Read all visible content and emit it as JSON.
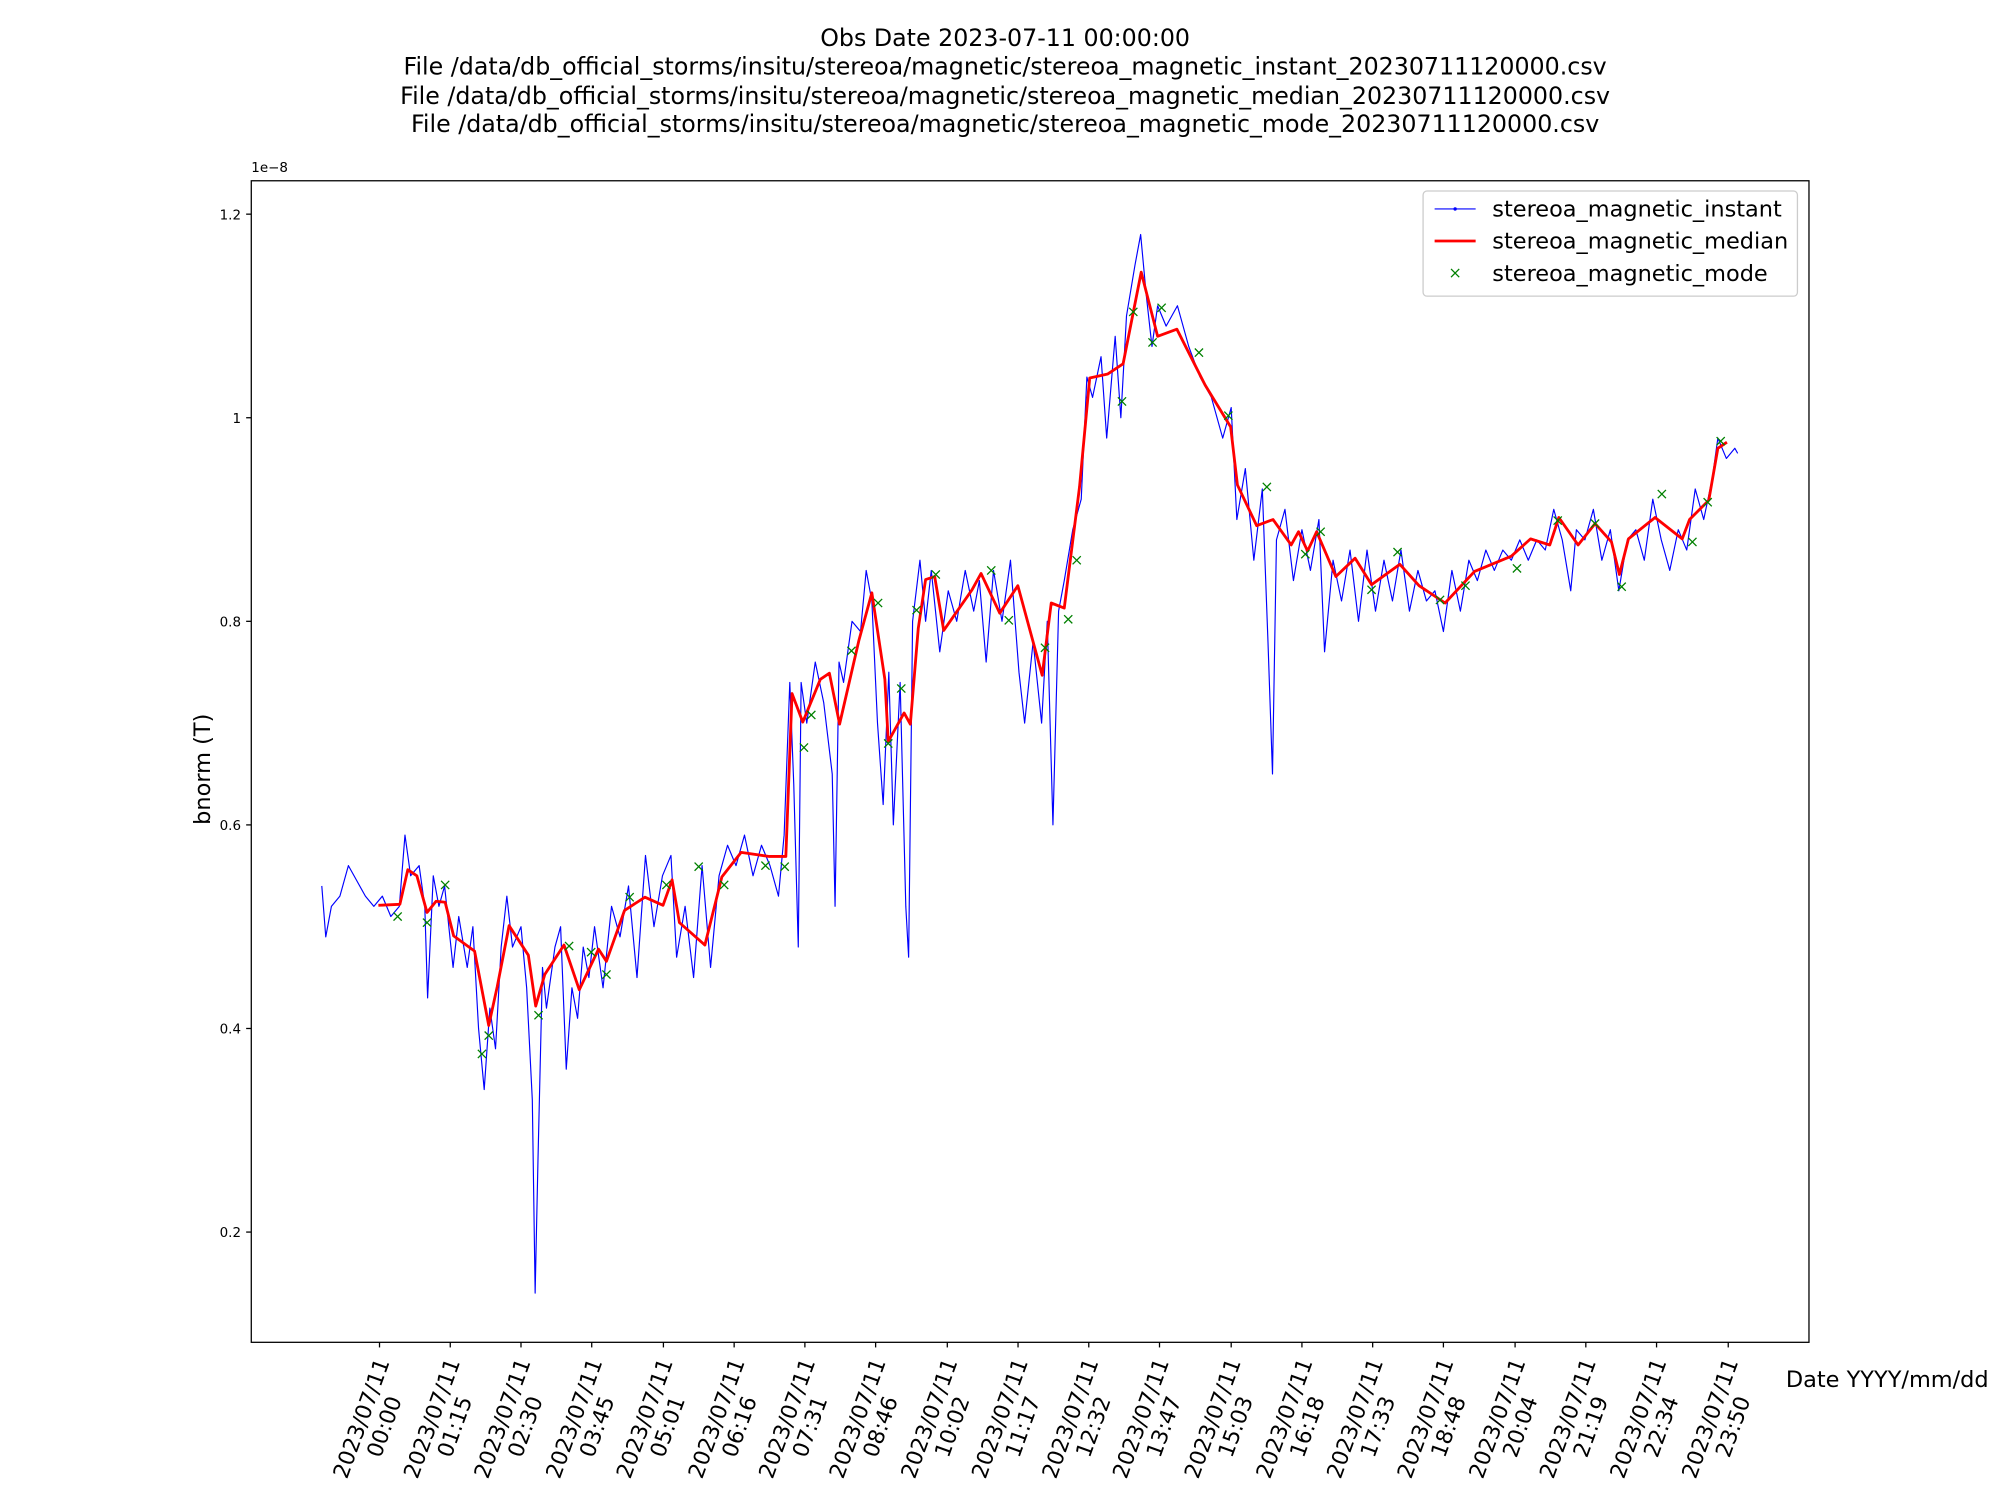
{
  "chart_data": {
    "type": "line",
    "title": "Obs Date 2023-07-11 00:00:00\nFile /data/db_official_storms/insitu/stereoa/magnetic/stereoa_magnetic_instant_20230711120000.csv\nFile /data/db_official_storms/insitu/stereoa/magnetic/stereoa_magnetic_median_20230711120000.csv\nFile /data/db_official_storms/insitu/stereoa/magnetic/stereoa_magnetic_mode_20230711120000.csv",
    "x_label": "Date YYYY/mm/dd",
    "y_label": "bnorm (T)",
    "y_offset_label": "1e−8",
    "xlim": [
      -2.266,
      25.26
    ],
    "ylim": [
      0.0917,
      1.2328
    ],
    "xticks": [
      {
        "value": 0,
        "label": "2023/07/11\n00:00"
      },
      {
        "value": 1.25,
        "label": "2023/07/11\n01:15"
      },
      {
        "value": 2.5,
        "label": "2023/07/11\n02:30"
      },
      {
        "value": 3.75,
        "label": "2023/07/11\n03:45"
      },
      {
        "value": 5.0167,
        "label": "2023/07/11\n05:01"
      },
      {
        "value": 6.2667,
        "label": "2023/07/11\n06:16"
      },
      {
        "value": 7.5167,
        "label": "2023/07/11\n07:31"
      },
      {
        "value": 8.7667,
        "label": "2023/07/11\n08:46"
      },
      {
        "value": 10.0333,
        "label": "2023/07/11\n10:02"
      },
      {
        "value": 11.2833,
        "label": "2023/07/11\n11:17"
      },
      {
        "value": 12.5333,
        "label": "2023/07/11\n12:32"
      },
      {
        "value": 13.7833,
        "label": "2023/07/11\n13:47"
      },
      {
        "value": 15.05,
        "label": "2023/07/11\n15:03"
      },
      {
        "value": 16.3,
        "label": "2023/07/11\n16:18"
      },
      {
        "value": 17.55,
        "label": "2023/07/11\n17:33"
      },
      {
        "value": 18.8,
        "label": "2023/07/11\n18:48"
      },
      {
        "value": 20.0667,
        "label": "2023/07/11\n20:04"
      },
      {
        "value": 21.3167,
        "label": "2023/07/11\n21:19"
      },
      {
        "value": 22.5667,
        "label": "2023/07/11\n22:34"
      },
      {
        "value": 23.8333,
        "label": "2023/07/11\n23:50"
      }
    ],
    "yticks": [
      0.2,
      0.4,
      0.6,
      0.8,
      1.0,
      1.2
    ],
    "grid": false,
    "legend": "upper right",
    "series": [
      {
        "name": "stereoa_magnetic_instant",
        "color": "#0000ff",
        "style": "thin-line",
        "x": [
          -1.02,
          -0.95,
          -0.85,
          -0.7,
          -0.55,
          -0.4,
          -0.25,
          -0.1,
          0.05,
          0.2,
          0.35,
          0.45,
          0.55,
          0.7,
          0.8,
          0.85,
          0.95,
          1.05,
          1.15,
          1.3,
          1.4,
          1.55,
          1.65,
          1.75,
          1.85,
          1.95,
          2.05,
          2.15,
          2.25,
          2.35,
          2.5,
          2.6,
          2.7,
          2.75,
          2.8,
          2.88,
          2.95,
          3.1,
          3.2,
          3.3,
          3.4,
          3.5,
          3.6,
          3.7,
          3.8,
          3.95,
          4.1,
          4.25,
          4.4,
          4.55,
          4.7,
          4.85,
          5.0,
          5.15,
          5.25,
          5.4,
          5.55,
          5.7,
          5.85,
          6.0,
          6.15,
          6.3,
          6.45,
          6.6,
          6.75,
          6.9,
          7.05,
          7.15,
          7.25,
          7.32,
          7.4,
          7.45,
          7.55,
          7.7,
          7.85,
          8.0,
          8.05,
          8.12,
          8.2,
          8.35,
          8.5,
          8.6,
          8.7,
          8.8,
          8.9,
          9.0,
          9.08,
          9.2,
          9.3,
          9.35,
          9.42,
          9.55,
          9.65,
          9.75,
          9.9,
          10.05,
          10.2,
          10.35,
          10.5,
          10.6,
          10.72,
          10.85,
          11.0,
          11.15,
          11.3,
          11.4,
          11.55,
          11.7,
          11.8,
          11.9,
          12.0,
          12.1,
          12.25,
          12.4,
          12.5,
          12.6,
          12.75,
          12.85,
          13.0,
          13.1,
          13.2,
          13.35,
          13.45,
          13.55,
          13.65,
          13.75,
          13.9,
          14.1,
          14.3,
          14.5,
          14.7,
          14.9,
          15.05,
          15.15,
          15.3,
          15.45,
          15.6,
          15.7,
          15.78,
          15.85,
          16.0,
          16.15,
          16.3,
          16.45,
          16.6,
          16.7,
          16.85,
          17.0,
          17.15,
          17.3,
          17.45,
          17.6,
          17.75,
          17.9,
          18.05,
          18.2,
          18.35,
          18.5,
          18.65,
          18.8,
          18.95,
          19.1,
          19.25,
          19.4,
          19.55,
          19.7,
          19.85,
          20.0,
          20.15,
          20.3,
          20.45,
          20.6,
          20.75,
          20.9,
          21.05,
          21.15,
          21.3,
          21.45,
          21.6,
          21.75,
          21.9,
          22.05,
          22.2,
          22.35,
          22.5,
          22.65,
          22.8,
          22.95,
          23.1,
          23.25,
          23.4,
          23.55,
          23.65,
          23.8,
          23.95,
          24.0
        ],
        "values": [
          0.54,
          0.49,
          0.52,
          0.53,
          0.56,
          0.545,
          0.53,
          0.52,
          0.53,
          0.51,
          0.52,
          0.59,
          0.55,
          0.56,
          0.52,
          0.43,
          0.55,
          0.52,
          0.54,
          0.46,
          0.51,
          0.46,
          0.5,
          0.4,
          0.34,
          0.42,
          0.38,
          0.48,
          0.53,
          0.48,
          0.5,
          0.44,
          0.33,
          0.14,
          0.27,
          0.46,
          0.42,
          0.48,
          0.5,
          0.36,
          0.44,
          0.41,
          0.48,
          0.45,
          0.5,
          0.44,
          0.52,
          0.49,
          0.54,
          0.45,
          0.57,
          0.5,
          0.55,
          0.57,
          0.47,
          0.52,
          0.45,
          0.56,
          0.46,
          0.55,
          0.58,
          0.56,
          0.59,
          0.55,
          0.58,
          0.56,
          0.53,
          0.59,
          0.74,
          0.64,
          0.48,
          0.74,
          0.7,
          0.76,
          0.72,
          0.65,
          0.52,
          0.76,
          0.74,
          0.8,
          0.79,
          0.85,
          0.82,
          0.7,
          0.62,
          0.75,
          0.6,
          0.74,
          0.52,
          0.47,
          0.8,
          0.86,
          0.8,
          0.85,
          0.77,
          0.83,
          0.8,
          0.85,
          0.81,
          0.84,
          0.76,
          0.85,
          0.8,
          0.86,
          0.75,
          0.7,
          0.78,
          0.7,
          0.8,
          0.6,
          0.81,
          0.84,
          0.89,
          0.92,
          1.04,
          1.02,
          1.06,
          0.98,
          1.08,
          1.0,
          1.1,
          1.15,
          1.18,
          1.12,
          1.07,
          1.11,
          1.09,
          1.11,
          1.07,
          1.04,
          1.02,
          0.98,
          1.01,
          0.9,
          0.95,
          0.86,
          0.93,
          0.78,
          0.65,
          0.88,
          0.91,
          0.84,
          0.89,
          0.85,
          0.9,
          0.77,
          0.86,
          0.82,
          0.87,
          0.8,
          0.87,
          0.81,
          0.86,
          0.82,
          0.87,
          0.81,
          0.85,
          0.82,
          0.83,
          0.79,
          0.85,
          0.81,
          0.86,
          0.84,
          0.87,
          0.85,
          0.87,
          0.86,
          0.88,
          0.86,
          0.88,
          0.87,
          0.91,
          0.88,
          0.83,
          0.89,
          0.88,
          0.91,
          0.86,
          0.89,
          0.83,
          0.88,
          0.89,
          0.86,
          0.92,
          0.88,
          0.85,
          0.89,
          0.87,
          0.93,
          0.9,
          0.94,
          0.98,
          0.96,
          0.97,
          0.965
        ]
      },
      {
        "name": "stereoa_magnetic_median",
        "color": "#ff0000",
        "style": "line",
        "x": [
          -0.02,
          0.36,
          0.5,
          0.66,
          0.84,
          1.0,
          1.16,
          1.31,
          1.68,
          1.93,
          2.08,
          2.29,
          2.63,
          2.76,
          2.92,
          3.26,
          3.53,
          3.87,
          4.01,
          4.33,
          4.69,
          5.01,
          5.17,
          5.3,
          5.75,
          6.05,
          6.39,
          6.89,
          7.18,
          7.29,
          7.48,
          7.79,
          7.95,
          8.13,
          8.47,
          8.7,
          8.93,
          8.99,
          9.27,
          9.38,
          9.52,
          9.65,
          9.81,
          9.97,
          10.47,
          10.63,
          10.96,
          11.28,
          11.71,
          11.87,
          12.1,
          12.37,
          12.55,
          12.87,
          13.14,
          13.46,
          13.75,
          14.09,
          14.59,
          15.04,
          15.16,
          15.5,
          15.79,
          16.11,
          16.24,
          16.4,
          16.56,
          16.9,
          17.24,
          17.53,
          18.03,
          18.37,
          18.83,
          19.35,
          20.0,
          20.34,
          20.68,
          20.84,
          21.18,
          21.48,
          21.77,
          21.91,
          22.07,
          22.54,
          23.02,
          23.15,
          23.49,
          23.65,
          23.81
        ],
        "values": [
          0.521,
          0.522,
          0.556,
          0.55,
          0.514,
          0.525,
          0.524,
          0.491,
          0.476,
          0.403,
          0.441,
          0.501,
          0.472,
          0.422,
          0.453,
          0.482,
          0.438,
          0.478,
          0.466,
          0.516,
          0.529,
          0.521,
          0.546,
          0.504,
          0.482,
          0.549,
          0.573,
          0.569,
          0.569,
          0.729,
          0.701,
          0.743,
          0.749,
          0.699,
          0.781,
          0.828,
          0.743,
          0.682,
          0.71,
          0.699,
          0.793,
          0.841,
          0.844,
          0.791,
          0.831,
          0.847,
          0.808,
          0.835,
          0.747,
          0.818,
          0.813,
          0.932,
          1.039,
          1.043,
          1.053,
          1.143,
          1.08,
          1.087,
          1.032,
          0.991,
          0.934,
          0.894,
          0.9,
          0.875,
          0.888,
          0.869,
          0.888,
          0.844,
          0.862,
          0.836,
          0.856,
          0.835,
          0.818,
          0.849,
          0.864,
          0.881,
          0.875,
          0.902,
          0.875,
          0.896,
          0.878,
          0.846,
          0.881,
          0.902,
          0.881,
          0.9,
          0.919,
          0.97,
          0.976
        ]
      },
      {
        "name": "stereoa_magnetic_mode",
        "color": "#008000",
        "style": "x-marker",
        "x": [
          0.32,
          0.84,
          1.16,
          1.81,
          1.93,
          2.81,
          3.35,
          3.74,
          4.01,
          4.42,
          5.07,
          5.64,
          6.09,
          6.82,
          7.16,
          7.5,
          7.63,
          8.34,
          8.81,
          8.99,
          9.22,
          9.49,
          9.83,
          10.81,
          11.12,
          11.76,
          12.17,
          12.32,
          13.12,
          13.32,
          13.66,
          13.82,
          14.48,
          15.0,
          15.68,
          16.36,
          16.63,
          17.53,
          17.99,
          18.74,
          19.19,
          20.1,
          20.82,
          21.48,
          21.95,
          22.66,
          23.2,
          23.47,
          23.7
        ],
        "values": [
          0.51,
          0.504,
          0.541,
          0.375,
          0.393,
          0.413,
          0.481,
          0.475,
          0.453,
          0.529,
          0.541,
          0.559,
          0.541,
          0.56,
          0.559,
          0.676,
          0.708,
          0.771,
          0.818,
          0.68,
          0.734,
          0.811,
          0.846,
          0.85,
          0.801,
          0.774,
          0.802,
          0.86,
          1.016,
          1.104,
          1.074,
          1.108,
          1.064,
          1.002,
          0.932,
          0.866,
          0.888,
          0.831,
          0.868,
          0.821,
          0.835,
          0.852,
          0.899,
          0.896,
          0.834,
          0.925,
          0.878,
          0.917,
          0.977
        ]
      }
    ]
  }
}
